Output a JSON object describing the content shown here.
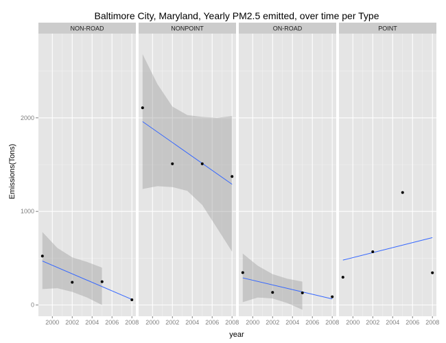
{
  "chart_data": {
    "type": "scatter",
    "title": "Baltimore City, Maryland, Yearly PM2.5 emitted, over time per Type",
    "xlabel": "year",
    "ylabel": "Emissions(Tons)",
    "xlim": [
      1998.6,
      2008.4
    ],
    "ylim": [
      -120,
      2900
    ],
    "x_ticks": [
      2000,
      2002,
      2004,
      2006,
      2008
    ],
    "y_ticks": [
      0,
      1000,
      2000
    ],
    "grid": true,
    "smoother": "linear fit with confidence band",
    "colors": {
      "panel_bg": "#e5e5e5",
      "grid_major": "#ffffff",
      "grid_minor": "#f2f2f2",
      "strip_bg": "#cccccc",
      "point": "#000000",
      "fit_line": "#3366ff",
      "band": "#999999"
    },
    "panels": [
      {
        "name": "NON-ROAD",
        "x": [
          1999,
          2002,
          2005,
          2008
        ],
        "y": [
          522.9,
          242.7,
          248.9,
          55.8
        ],
        "fit": {
          "x": [
            1999,
            2008
          ],
          "y": [
            470,
            60
          ]
        },
        "band": {
          "x": [
            1999,
            2000.5,
            2002,
            2003.5,
            2005
          ],
          "upper": [
            780,
            610,
            510,
            460,
            400
          ],
          "lower": [
            170,
            180,
            140,
            80,
            0
          ]
        }
      },
      {
        "name": "NONPOINT",
        "x": [
          1999,
          2002,
          2005,
          2008
        ],
        "y": [
          2107.6,
          1509.5,
          1509.5,
          1373.2
        ],
        "fit": {
          "x": [
            1999,
            2008
          ],
          "y": [
            1960,
            1290
          ]
        },
        "band": {
          "x": [
            1999,
            2000.5,
            2002,
            2003.5,
            2005,
            2006.5,
            2008
          ],
          "upper": [
            2680,
            2360,
            2120,
            2030,
            2010,
            2000,
            2020
          ],
          "lower": [
            1240,
            1270,
            1260,
            1220,
            1070,
            820,
            570
          ]
        }
      },
      {
        "name": "ON-ROAD",
        "x": [
          1999,
          2002,
          2005,
          2008
        ],
        "y": [
          346.8,
          134.3,
          130.4,
          88.3
        ],
        "fit": {
          "x": [
            1999,
            2008
          ],
          "y": [
            290,
            65
          ]
        },
        "band": {
          "x": [
            1999,
            2000.5,
            2002,
            2003.5,
            2005
          ],
          "upper": [
            550,
            420,
            330,
            280,
            250
          ],
          "lower": [
            30,
            80,
            70,
            20,
            -50
          ]
        }
      },
      {
        "name": "POINT",
        "x": [
          1999,
          2002,
          2005,
          2008
        ],
        "y": [
          296.8,
          569.3,
          1202.5,
          344.98
        ],
        "fit": {
          "x": [
            1999,
            2008
          ],
          "y": [
            480,
            720
          ]
        },
        "band": null
      }
    ]
  }
}
